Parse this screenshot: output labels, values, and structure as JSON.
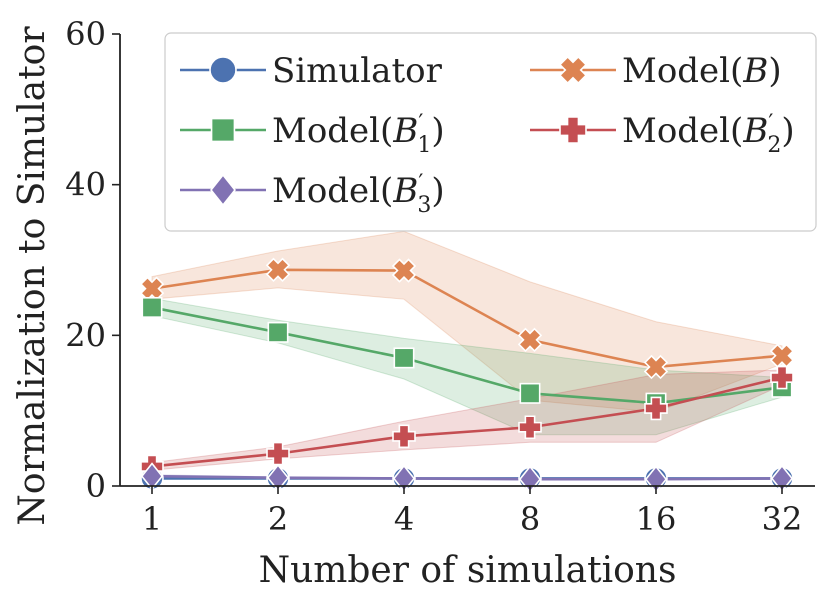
{
  "chart_data": {
    "type": "line",
    "title": "",
    "xlabel": "Number of simulations",
    "ylabel": "Normalization to Simulator",
    "categories": [
      "1",
      "2",
      "4",
      "8",
      "16",
      "32"
    ],
    "ylim": [
      0,
      60
    ],
    "yticks": [
      0,
      20,
      40,
      60
    ],
    "grid": false,
    "legend_position": "top-right",
    "series": [
      {
        "name": "Simulator",
        "label_main": "Simulator",
        "label_sub": "",
        "label_prime": false,
        "label_paren": false,
        "color": "#4c72b0",
        "marker": "circle",
        "values": [
          1.0,
          1.0,
          1.0,
          1.0,
          1.0,
          1.0
        ],
        "lower": [
          1.0,
          1.0,
          1.0,
          1.0,
          1.0,
          1.0
        ],
        "upper": [
          1.0,
          1.0,
          1.0,
          1.0,
          1.0,
          1.0
        ]
      },
      {
        "name": "Model(B)",
        "label_main": "B",
        "label_sub": "",
        "label_prime": false,
        "label_paren": true,
        "color": "#dd8452",
        "marker": "x",
        "values": [
          26.2,
          28.7,
          28.6,
          19.4,
          15.8,
          17.3
        ],
        "lower": [
          24.8,
          26.3,
          24.8,
          11.4,
          9.8,
          16.2
        ],
        "upper": [
          27.8,
          31.2,
          33.8,
          27.1,
          21.8,
          18.6
        ]
      },
      {
        "name": "Model(B'1)",
        "label_main": "B",
        "label_sub": "1",
        "label_prime": true,
        "label_paren": true,
        "color": "#55a868",
        "marker": "square",
        "values": [
          23.7,
          20.4,
          17.0,
          12.3,
          11.0,
          13.1
        ],
        "lower": [
          22.6,
          19.0,
          14.2,
          6.8,
          6.8,
          11.8
        ],
        "upper": [
          24.9,
          22.0,
          19.6,
          17.6,
          15.4,
          14.4
        ]
      },
      {
        "name": "Model(B'2)",
        "label_main": "B",
        "label_sub": "2",
        "label_prime": true,
        "label_paren": true,
        "color": "#c44e52",
        "marker": "plus",
        "values": [
          2.6,
          4.3,
          6.6,
          7.8,
          10.3,
          14.4
        ],
        "lower": [
          2.1,
          3.6,
          4.8,
          5.8,
          5.8,
          13.4
        ],
        "upper": [
          3.1,
          5.2,
          8.6,
          11.6,
          14.8,
          15.4
        ]
      },
      {
        "name": "Model(B'3)",
        "label_main": "B",
        "label_sub": "3",
        "label_prime": true,
        "label_paren": true,
        "color": "#8172b3",
        "marker": "diamond",
        "values": [
          1.3,
          1.1,
          1.0,
          0.9,
          0.9,
          1.0
        ],
        "lower": [
          1.1,
          1.0,
          0.9,
          0.8,
          0.8,
          0.9
        ],
        "upper": [
          1.5,
          1.2,
          1.1,
          1.0,
          1.0,
          1.1
        ]
      }
    ],
    "legend_order": [
      0,
      1,
      2,
      3,
      4
    ]
  }
}
